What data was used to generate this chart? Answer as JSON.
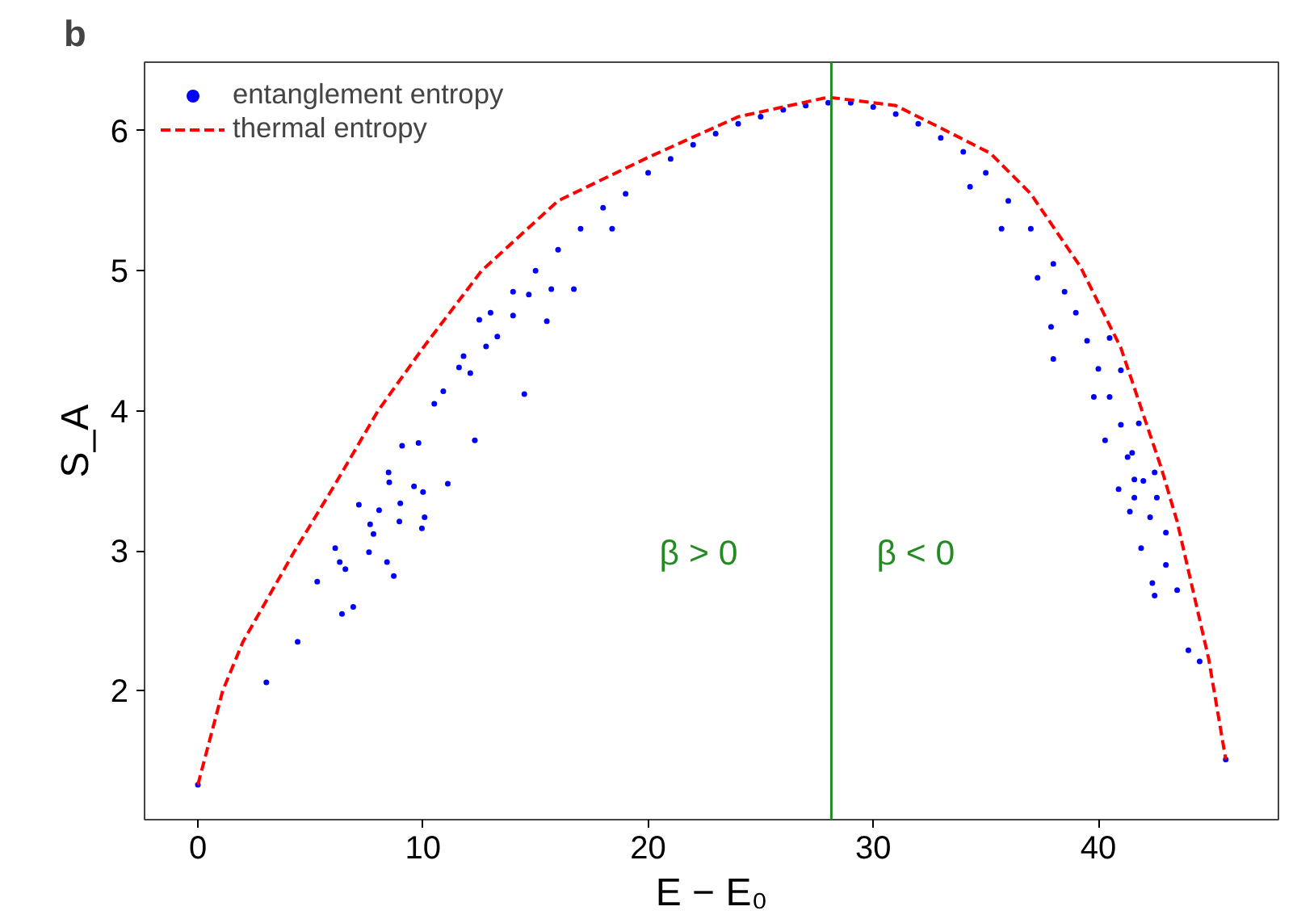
{
  "chart_data": {
    "type": "scatter",
    "title": "b",
    "xlabel": "E − E₀",
    "ylabel": "S_A",
    "xlim": [
      -2.37,
      48.0
    ],
    "ylim": [
      1.08,
      6.49
    ],
    "xticks": [
      0,
      10,
      20,
      30,
      40
    ],
    "yticks": [
      2,
      3,
      4,
      5,
      6
    ],
    "grid": false,
    "legend": "top left",
    "series": [
      {
        "name": "entanglement entropy",
        "marker": "circle",
        "color": "#0000ff",
        "x": [
          0,
          3.04,
          4.43,
          5.3,
          6.1,
          6.4,
          6.9,
          6.3,
          6.55,
          7.15,
          7.6,
          7.8,
          7.65,
          8.4,
          8.7,
          8.05,
          8.99,
          8.95,
          9.95,
          10.07,
          8.5,
          9.6,
          10.0,
          11.1,
          8.47,
          9.07,
          9.8,
          10.5,
          10.9,
          11.6,
          12.1,
          12.3,
          11.8,
          12.8,
          14.5,
          13.3,
          14.0,
          15.5,
          15.7,
          16.7,
          14.7,
          18.4,
          12.5,
          13,
          14,
          15,
          16,
          17,
          18,
          19,
          20,
          21,
          22,
          23,
          24,
          25,
          26,
          27,
          28,
          29,
          30,
          31,
          32,
          33,
          34,
          35,
          36,
          37,
          38,
          38.5,
          39,
          39.5,
          40,
          40.5,
          41,
          41.5,
          42,
          37.3,
          37.9,
          38.0,
          34.3,
          35.7,
          39.8,
          40.5,
          41.0,
          40.3,
          41.3,
          41.8,
          42.5,
          41.6,
          40.9,
          41.4,
          41.9,
          42.4,
          42.5,
          43.0,
          43.5,
          43.0,
          44.0,
          44.5,
          45.66,
          42.3,
          42.6,
          41.6
        ],
        "values": [
          1.33,
          2.06,
          2.35,
          2.78,
          3.02,
          2.55,
          2.6,
          2.92,
          2.87,
          3.33,
          2.99,
          3.12,
          3.19,
          2.92,
          2.82,
          3.29,
          3.34,
          3.21,
          3.16,
          3.24,
          3.49,
          3.46,
          3.42,
          3.48,
          3.56,
          3.75,
          3.77,
          4.05,
          4.14,
          4.31,
          4.27,
          3.79,
          4.39,
          4.46,
          4.12,
          4.53,
          4.68,
          4.64,
          4.87,
          4.87,
          4.83,
          5.3,
          4.65,
          4.7,
          4.85,
          5.0,
          5.15,
          5.3,
          5.45,
          5.55,
          5.7,
          5.8,
          5.9,
          5.98,
          6.05,
          6.1,
          6.15,
          6.18,
          6.2,
          6.2,
          6.17,
          6.12,
          6.05,
          5.95,
          5.85,
          5.7,
          5.5,
          5.3,
          5.05,
          4.85,
          4.7,
          4.5,
          4.3,
          4.1,
          3.9,
          3.7,
          3.5,
          4.95,
          4.6,
          4.37,
          5.6,
          5.3,
          4.1,
          4.52,
          4.29,
          3.79,
          3.67,
          3.91,
          3.56,
          3.51,
          3.44,
          3.28,
          3.02,
          2.77,
          2.68,
          2.9,
          2.72,
          3.13,
          2.29,
          2.21,
          1.51,
          3.24,
          3.38,
          3.38
        ]
      },
      {
        "name": "thermal entropy",
        "type": "line",
        "line_style": "dashed",
        "color": "#ff0000",
        "x": [
          0,
          1.1,
          2,
          4.3,
          6,
          8,
          10,
          12.6,
          16,
          20,
          24,
          28,
          31,
          33,
          35.2,
          37,
          39.2,
          41,
          42.8,
          43.5,
          44.9,
          45.66
        ],
        "values": [
          1.33,
          2.0,
          2.35,
          3.0,
          3.45,
          4.0,
          4.45,
          5.0,
          5.5,
          5.81,
          6.1,
          6.24,
          6.18,
          6.02,
          5.84,
          5.55,
          5.03,
          4.45,
          3.59,
          3.21,
          2.23,
          1.51
        ]
      }
    ],
    "ref_lines": [
      {
        "axis": "x",
        "value": 28.14,
        "color": "#228b22",
        "line_style": "solid"
      }
    ],
    "annotations": [
      "β > 0",
      "β < 0"
    ]
  }
}
